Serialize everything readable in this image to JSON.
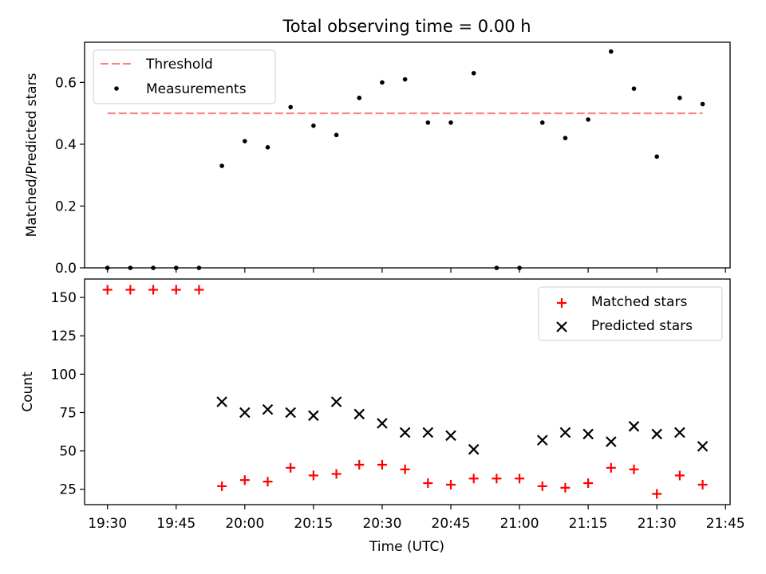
{
  "title": "Total observing time = 0.00 h",
  "colors": {
    "threshold": "#ff7f7f",
    "measurement": "#000000",
    "matched": "#ff0000",
    "predicted": "#000000"
  },
  "chart_data": [
    {
      "type": "scatter",
      "panel": "top",
      "title": "Total observing time = 0.00 h",
      "xlabel": "",
      "ylabel": "Matched/Predicted stars",
      "xlim": [
        "19:25",
        "21:46"
      ],
      "ylim": [
        0,
        0.73
      ],
      "yticks": [
        0.0,
        0.2,
        0.4,
        0.6
      ],
      "ytick_labels": [
        "0.0",
        "0.2",
        "0.4",
        "0.6"
      ],
      "legend_position": "upper left",
      "legend": [
        "Threshold",
        "Measurements"
      ],
      "threshold": {
        "name": "Threshold",
        "value": 0.5,
        "x_range": [
          "19:30",
          "21:40"
        ],
        "style": "dashed"
      },
      "series": [
        {
          "name": "Measurements",
          "marker": "dot",
          "x": [
            "19:30",
            "19:35",
            "19:40",
            "19:45",
            "19:50",
            "19:55",
            "20:00",
            "20:05",
            "20:10",
            "20:15",
            "20:20",
            "20:25",
            "20:30",
            "20:35",
            "20:40",
            "20:45",
            "20:50",
            "20:55",
            "21:00",
            "21:05",
            "21:10",
            "21:15",
            "21:20",
            "21:25",
            "21:30",
            "21:35",
            "21:40"
          ],
          "y": [
            0.0,
            0.0,
            0.0,
            0.0,
            0.0,
            0.33,
            0.41,
            0.39,
            0.52,
            0.46,
            0.43,
            0.55,
            0.6,
            0.61,
            0.47,
            0.47,
            0.63,
            0.0,
            0.0,
            0.47,
            0.42,
            0.48,
            0.7,
            0.58,
            0.36,
            0.55,
            0.53
          ]
        }
      ]
    },
    {
      "type": "scatter",
      "panel": "bottom",
      "xlabel": "Time (UTC)",
      "ylabel": "Count",
      "xlim": [
        "19:25",
        "21:46"
      ],
      "ylim": [
        15,
        162
      ],
      "xticks": [
        "19:30",
        "19:45",
        "20:00",
        "20:15",
        "20:30",
        "20:45",
        "21:00",
        "21:15",
        "21:30",
        "21:45"
      ],
      "yticks": [
        25,
        50,
        75,
        100,
        125,
        150
      ],
      "ytick_labels": [
        "25",
        "50",
        "75",
        "100",
        "125",
        "150"
      ],
      "legend_position": "upper right",
      "legend": [
        "Matched stars",
        "Predicted stars"
      ],
      "series": [
        {
          "name": "Matched stars",
          "marker": "plus",
          "x": [
            "19:30",
            "19:35",
            "19:40",
            "19:45",
            "19:50",
            "19:55",
            "20:00",
            "20:05",
            "20:10",
            "20:15",
            "20:20",
            "20:25",
            "20:30",
            "20:35",
            "20:40",
            "20:45",
            "20:50",
            "20:55",
            "21:00",
            "21:05",
            "21:10",
            "21:15",
            "21:20",
            "21:25",
            "21:30",
            "21:35",
            "21:40"
          ],
          "y": [
            155,
            155,
            155,
            155,
            155,
            27,
            31,
            30,
            39,
            34,
            35,
            41,
            41,
            38,
            29,
            28,
            32,
            32,
            32,
            27,
            26,
            29,
            39,
            38,
            22,
            34,
            28
          ]
        },
        {
          "name": "Predicted stars",
          "marker": "x",
          "x": [
            "19:55",
            "20:00",
            "20:05",
            "20:10",
            "20:15",
            "20:20",
            "20:25",
            "20:30",
            "20:35",
            "20:40",
            "20:45",
            "20:50",
            "21:05",
            "21:10",
            "21:15",
            "21:20",
            "21:25",
            "21:30",
            "21:35",
            "21:40"
          ],
          "y": [
            82,
            75,
            77,
            75,
            73,
            82,
            74,
            68,
            62,
            62,
            60,
            51,
            57,
            62,
            61,
            56,
            66,
            61,
            62,
            53
          ]
        }
      ]
    }
  ]
}
